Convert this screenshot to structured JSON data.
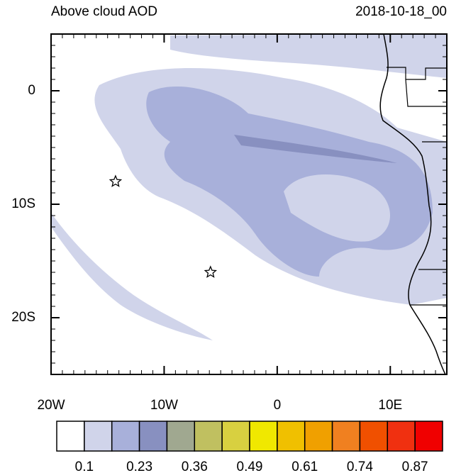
{
  "map": {
    "title": "Above cloud AOD",
    "date": "2018-10-18_00",
    "xlim": [
      -20,
      15
    ],
    "ylim": [
      -25,
      5
    ],
    "xticks": [
      {
        "value": -20,
        "label": "20W"
      },
      {
        "value": -10,
        "label": "10W"
      },
      {
        "value": 0,
        "label": "0"
      },
      {
        "value": 10,
        "label": "10E"
      }
    ],
    "yticks": [
      {
        "value": 0,
        "label": "0"
      },
      {
        "value": -10,
        "label": "10S"
      },
      {
        "value": -20,
        "label": "20S"
      }
    ],
    "markers": [
      {
        "lon": -14.3,
        "lat": -8
      },
      {
        "lon": -5.9,
        "lat": -16
      }
    ],
    "colorbar": {
      "colors": [
        "#ffffff",
        "#d0d4ea",
        "#a8b0da",
        "#8890c0",
        "#a0a890",
        "#c0c060",
        "#d8d040",
        "#f0e800",
        "#f0c000",
        "#f0a000",
        "#f08020",
        "#f05000",
        "#f03010",
        "#f00000"
      ],
      "labels": [
        "0.1",
        "0.23",
        "0.36",
        "0.49",
        "0.61",
        "0.74",
        "0.87"
      ]
    }
  }
}
